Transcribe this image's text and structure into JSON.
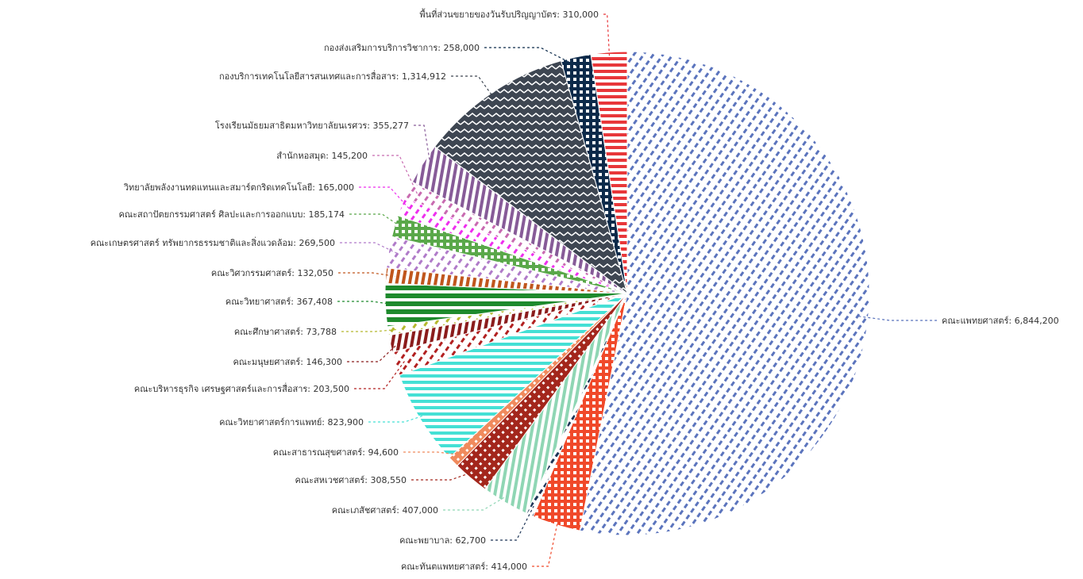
{
  "chart_data": {
    "type": "pie",
    "title": "",
    "slices": [
      {
        "label": "คณะแพทยศาสตร์",
        "value": 6844200,
        "color": "#5b74bd",
        "pattern": "diag-dash"
      },
      {
        "label": "คณะทันตแพทยศาสตร์",
        "value": 414000,
        "color": "#f0492a",
        "pattern": "grid"
      },
      {
        "label": "คณะพยาบาล",
        "value": 62700,
        "color": "#1d3557",
        "pattern": "diag-dash"
      },
      {
        "label": "คณะเภสัชศาสตร์",
        "value": 407000,
        "color": "#8fd6b4",
        "pattern": "vlines"
      },
      {
        "label": "คณะสหเวชศาสตร์",
        "value": 308550,
        "color": "#a3261c",
        "pattern": "diag-dots"
      },
      {
        "label": "คณะสาธารณสุขศาสตร์",
        "value": 94600,
        "color": "#f08a5d",
        "pattern": "diag-dots"
      },
      {
        "label": "คณะวิทยาศาสตร์การแพทย์",
        "value": 823900,
        "color": "#45e0d5",
        "pattern": "hlines"
      },
      {
        "label": "คณะบริหารธุรกิจ เศรษฐศาสตร์และการสื่อสาร",
        "value": 203500,
        "color": "#b22020",
        "pattern": "diag-dash"
      },
      {
        "label": "คณะมนุษยศาสตร์",
        "value": 146300,
        "color": "#8b1c1c",
        "pattern": "vlines"
      },
      {
        "label": "คณะศึกษาศาสตร์",
        "value": 73788,
        "color": "#b5b82e",
        "pattern": "diag-dash"
      },
      {
        "label": "คณะวิทยาศาสตร์",
        "value": 367408,
        "color": "#1e8a2d",
        "pattern": "hlines-bold"
      },
      {
        "label": "คณะวิศวกรรมศาสตร์",
        "value": 132050,
        "color": "#c0561d",
        "pattern": "vlines"
      },
      {
        "label": "คณะเกษตรศาสตร์ ทรัพยากรธรรมชาติและสิ่งแวดล้อม",
        "value": 269500,
        "color": "#b07bc9",
        "pattern": "diag-dash"
      },
      {
        "label": "คณะสถาปัตยกรรมศาสตร์ ศิลปะและการออกแบบ",
        "value": 185174,
        "color": "#5aa84a",
        "pattern": "grid"
      },
      {
        "label": "วิทยาลัยพลังงานทดแทนและสมาร์ตกริดเทคโนโลยี",
        "value": 165000,
        "color": "#ee2fee",
        "pattern": "diag-dash"
      },
      {
        "label": "สำนักหอสมุด",
        "value": 145200,
        "color": "#c86ab0",
        "pattern": "diag-dash"
      },
      {
        "label": "โรงเรียนมัธยมสาธิตมหาวิทยาลัยนเรศวร",
        "value": 355277,
        "color": "#875b98",
        "pattern": "vlines"
      },
      {
        "label": "กองบริการเทคโนโลยีสารสนเทศและการสื่อสาร",
        "value": 1314912,
        "color": "#3e4652",
        "pattern": "zigzag"
      },
      {
        "label": "กองส่งเสริมการบริการวิชาการ",
        "value": 258000,
        "color": "#0c2a4a",
        "pattern": "grid"
      },
      {
        "label": "พื้นที่ส่วนขยายของวันรับปริญญาบัตร",
        "value": 310000,
        "color": "#e8373a",
        "pattern": "hlines"
      }
    ],
    "legend": "none",
    "data_labels": "outside with leader lines"
  },
  "labels": [
    "คณะแพทยศาสตร์: 6,844,200",
    "คณะทันตแพทยศาสตร์: 414,000",
    "คณะพยาบาล: 62,700",
    "คณะเภสัชศาสตร์: 407,000",
    "คณะสหเวชศาสตร์: 308,550",
    "คณะสาธารณสุขศาสตร์: 94,600",
    "คณะวิทยาศาสตร์การแพทย์: 823,900",
    "คณะบริหารธุรกิจ เศรษฐศาสตร์และการสื่อสาร: 203,500",
    "คณะมนุษยศาสตร์: 146,300",
    "คณะศึกษาศาสตร์: 73,788",
    "คณะวิทยาศาสตร์: 367,408",
    "คณะวิศวกรรมศาสตร์: 132,050",
    "คณะเกษตรศาสตร์ ทรัพยากรธรรมชาติและสิ่งแวดล้อม: 269,500",
    "คณะสถาปัตยกรรมศาสตร์ ศิลปะและการออกแบบ: 185,174",
    "วิทยาลัยพลังงานทดแทนและสมาร์ตกริดเทคโนโลยี: 165,000",
    "สำนักหอสมุด: 145,200",
    "โรงเรียนมัธยมสาธิตมหาวิทยาลัยนเรศวร: 355,277",
    "กองบริการเทคโนโลยีสารสนเทศและการสื่อสาร: 1,314,912",
    "กองส่งเสริมการบริการวิชาการ: 258,000",
    "พื้นที่ส่วนขยายของวันรับปริญญาบัตร: 310,000"
  ]
}
